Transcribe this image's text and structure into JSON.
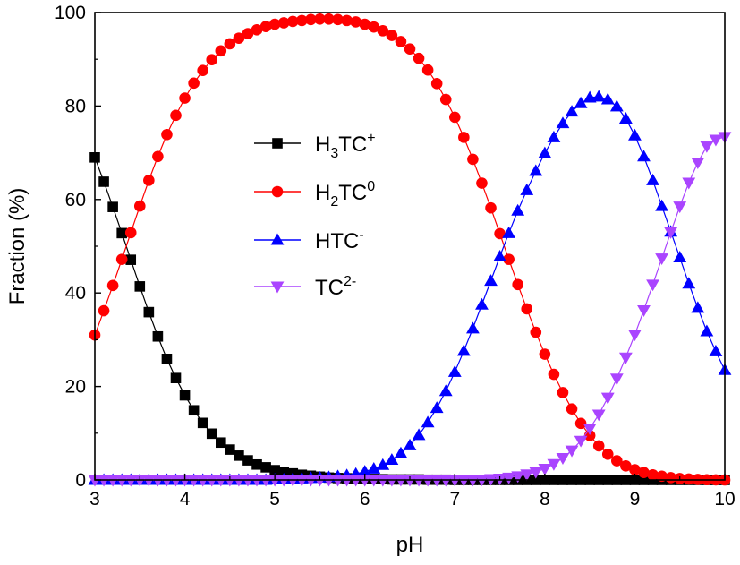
{
  "chart_data": {
    "type": "line",
    "title": "",
    "xlabel": "pH",
    "ylabel": "Fraction (%)",
    "xlim": [
      3,
      10
    ],
    "ylim": [
      0,
      100
    ],
    "xticks": [
      3,
      4,
      5,
      6,
      7,
      8,
      9,
      10
    ],
    "yticks": [
      0,
      20,
      40,
      60,
      80,
      100
    ],
    "grid": false,
    "legend_position": "center-left",
    "x": [
      3.0,
      3.1,
      3.2,
      3.3,
      3.4,
      3.5,
      3.6,
      3.7,
      3.8,
      3.9,
      4.0,
      4.1,
      4.2,
      4.3,
      4.4,
      4.5,
      4.6,
      4.7,
      4.8,
      4.9,
      5.0,
      5.1,
      5.2,
      5.3,
      5.4,
      5.5,
      5.6,
      5.7,
      5.8,
      5.9,
      6.0,
      6.1,
      6.2,
      6.3,
      6.4,
      6.5,
      6.6,
      6.7,
      6.8,
      6.9,
      7.0,
      7.1,
      7.2,
      7.3,
      7.4,
      7.5,
      7.6,
      7.7,
      7.8,
      7.9,
      8.0,
      8.1,
      8.2,
      8.3,
      8.4,
      8.5,
      8.6,
      8.7,
      8.8,
      8.9,
      9.0,
      9.1,
      9.2,
      9.3,
      9.4,
      9.5,
      9.6,
      9.7,
      9.8,
      9.9,
      10.0
    ],
    "series": [
      {
        "name_main": "H",
        "name_sub": "3",
        "name_tail": "TC",
        "name_sup": "+",
        "color": "#000000",
        "marker": "square",
        "values": [
          69.0,
          63.8,
          58.4,
          52.8,
          47.1,
          41.4,
          35.9,
          30.7,
          25.9,
          21.8,
          18.1,
          14.9,
          12.2,
          9.9,
          8.0,
          6.5,
          5.2,
          4.2,
          3.3,
          2.7,
          2.1,
          1.7,
          1.4,
          1.1,
          0.9,
          0.7,
          0.5,
          0.4,
          0.35,
          0.3,
          0.2,
          0.2,
          0.15,
          0.1,
          0.1,
          0.1,
          0.1,
          0.05,
          0.05,
          0.05,
          0,
          0,
          0,
          0,
          0,
          0,
          0,
          0,
          0,
          0,
          0,
          0,
          0,
          0,
          0,
          0,
          0,
          0,
          0,
          0,
          0,
          0,
          0,
          0,
          0,
          0,
          0,
          0,
          0,
          0,
          0
        ]
      },
      {
        "name_main": "H",
        "name_sub": "2",
        "name_tail": "TC",
        "name_sup": "0",
        "color": "#ff0000",
        "marker": "circle",
        "values": [
          31.0,
          36.2,
          41.6,
          47.2,
          52.9,
          58.6,
          64.1,
          69.2,
          73.9,
          78.0,
          81.7,
          84.9,
          87.6,
          89.9,
          91.8,
          93.3,
          94.5,
          95.5,
          96.3,
          97.0,
          97.5,
          97.8,
          98.1,
          98.3,
          98.5,
          98.6,
          98.6,
          98.5,
          98.3,
          98.0,
          97.5,
          96.9,
          96.1,
          95.1,
          93.8,
          92.2,
          90.2,
          87.7,
          84.8,
          81.4,
          77.6,
          73.3,
          68.6,
          63.5,
          58.2,
          52.7,
          47.2,
          41.8,
          36.6,
          31.6,
          26.9,
          22.6,
          18.7,
          15.2,
          12.1,
          9.5,
          7.3,
          5.5,
          4.1,
          3.0,
          2.2,
          1.6,
          1.1,
          0.8,
          0.5,
          0.3,
          0.2,
          0.1,
          0.05,
          0.02,
          0.0
        ]
      },
      {
        "name_main": "HTC",
        "name_sub": "",
        "name_tail": "",
        "name_sup": "-",
        "color": "#0000ff",
        "marker": "triangle-up",
        "values": [
          0,
          0,
          0,
          0,
          0,
          0,
          0,
          0,
          0,
          0,
          0,
          0,
          0,
          0,
          0,
          0,
          0,
          0,
          0,
          0,
          0.1,
          0.1,
          0.2,
          0.3,
          0.4,
          0.5,
          0.6,
          0.8,
          1.0,
          1.3,
          1.8,
          2.4,
          3.2,
          4.3,
          5.7,
          7.4,
          9.6,
          12.3,
          15.4,
          19.0,
          23.1,
          27.6,
          32.4,
          37.5,
          42.6,
          47.8,
          52.8,
          57.6,
          62.0,
          66.1,
          69.9,
          73.3,
          76.3,
          78.8,
          80.6,
          81.8,
          82.0,
          81.4,
          79.9,
          77.3,
          73.7,
          69.2,
          64.1,
          58.6,
          53.1,
          47.6,
          42.0,
          36.8,
          31.8,
          27.5,
          23.5
        ]
      },
      {
        "name_main": "TC",
        "name_sub": "",
        "name_tail": "",
        "name_sup": "2-",
        "color": "#aa44ff",
        "marker": "triangle-down",
        "values": [
          0,
          0,
          0,
          0,
          0,
          0,
          0,
          0,
          0,
          0,
          0,
          0,
          0,
          0,
          0,
          0,
          0,
          0,
          0,
          0,
          0,
          0,
          0,
          0,
          0,
          0,
          0,
          0,
          0,
          0,
          0,
          0,
          0,
          0,
          0,
          0,
          0,
          0,
          0,
          0,
          0,
          0,
          0.05,
          0.1,
          0.2,
          0.3,
          0.5,
          0.8,
          1.2,
          1.7,
          2.4,
          3.4,
          4.7,
          6.3,
          8.4,
          11.0,
          14.0,
          17.6,
          21.7,
          26.2,
          31.1,
          36.3,
          41.8,
          47.4,
          53.0,
          58.5,
          63.6,
          67.9,
          71.4,
          72.8,
          73.4
        ]
      }
    ]
  }
}
